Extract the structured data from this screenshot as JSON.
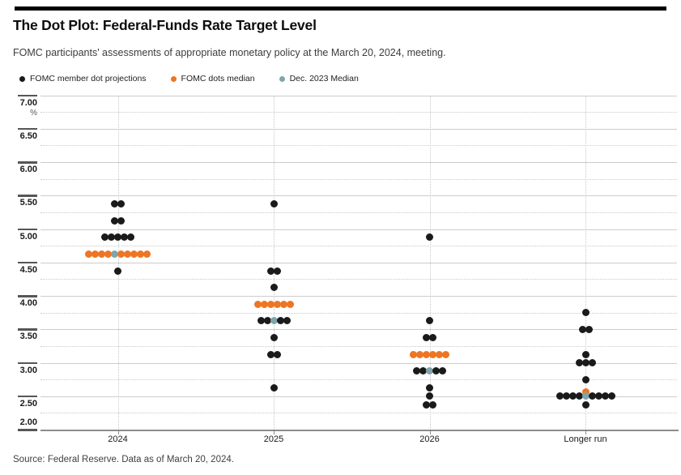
{
  "header": {
    "title": "The Dot Plot: Federal-Funds Rate Target Level",
    "subtitle": "FOMC participants' assessments of appropriate monetary policy at the March 20, 2024, meeting."
  },
  "legend": {
    "items": [
      {
        "label": "FOMC member dot projections",
        "color_key": "b"
      },
      {
        "label": "FOMC dots median",
        "color_key": "o"
      },
      {
        "label": "Dec. 2023 Median",
        "color_key": "t"
      }
    ]
  },
  "footer": {
    "source": "Source: Federal Reserve. Data as of March 20, 2024."
  },
  "chart_data": {
    "type": "scatter",
    "subtype": "fomc-dot-plot",
    "title": "The Dot Plot: Federal-Funds Rate Target Level",
    "ylabel": "%",
    "ylim": [
      2.0,
      7.0
    ],
    "y_major_tick_labels": [
      "7.00",
      "6.50",
      "6.00",
      "5.50",
      "5.00",
      "4.50",
      "4.00",
      "3.50",
      "3.00",
      "2.50",
      "2.00"
    ],
    "y_major_step": 0.5,
    "y_minor_step": 0.25,
    "grid": "horizontal-major-solid, horizontal-minor-dotted, vertical-column-dotted",
    "legend_position": "top-left",
    "categories": [
      "2024",
      "2025",
      "2026",
      "Longer run"
    ],
    "dot_colors": {
      "b": "#1a1a1a",
      "o": "#ee7523",
      "t": "#7fa5ab"
    },
    "dot_color_meaning": {
      "b": "FOMC member dot projection",
      "o": "FOMC dots median",
      "t": "Dec. 2023 Median"
    },
    "columns": [
      {
        "period": "2024",
        "median": 4.625,
        "dec_2023_median": 4.625,
        "rows": [
          {
            "value": 5.375,
            "pattern": "bb"
          },
          {
            "value": 5.125,
            "pattern": "bb"
          },
          {
            "value": 4.875,
            "pattern": "bbbbb"
          },
          {
            "value": 4.625,
            "pattern": "ooootooooo"
          },
          {
            "value": 4.375,
            "pattern": "b"
          }
        ]
      },
      {
        "period": "2025",
        "median": 3.875,
        "dec_2023_median": 3.625,
        "rows": [
          {
            "value": 5.375,
            "pattern": "b"
          },
          {
            "value": 4.375,
            "pattern": "bb"
          },
          {
            "value": 4.125,
            "pattern": "b"
          },
          {
            "value": 3.875,
            "pattern": "oooooo"
          },
          {
            "value": 3.625,
            "pattern": "bbtbb"
          },
          {
            "value": 3.375,
            "pattern": "b"
          },
          {
            "value": 3.125,
            "pattern": "bb"
          },
          {
            "value": 2.625,
            "pattern": "b"
          }
        ]
      },
      {
        "period": "2026",
        "median": 3.125,
        "dec_2023_median": 2.875,
        "rows": [
          {
            "value": 4.875,
            "pattern": "b"
          },
          {
            "value": 3.625,
            "pattern": "b"
          },
          {
            "value": 3.375,
            "pattern": "bb"
          },
          {
            "value": 3.125,
            "pattern": "oooooo"
          },
          {
            "value": 2.875,
            "pattern": "bbtbb"
          },
          {
            "value": 2.625,
            "pattern": "b"
          },
          {
            "value": 2.5,
            "pattern": "b"
          },
          {
            "value": 2.375,
            "pattern": "bb"
          }
        ]
      },
      {
        "period": "Longer run",
        "median": 2.5625,
        "dec_2023_median": 2.5,
        "rows": [
          {
            "value": 3.75,
            "pattern": "b"
          },
          {
            "value": 3.5,
            "pattern": "bb"
          },
          {
            "value": 3.125,
            "pattern": "b"
          },
          {
            "value": 3.0,
            "pattern": "bbb"
          },
          {
            "value": 2.75,
            "pattern": "b"
          },
          {
            "value": 2.5625,
            "pattern": "o"
          },
          {
            "value": 2.5,
            "pattern": "bbbbtbbbb"
          },
          {
            "value": 2.375,
            "pattern": "b"
          }
        ]
      }
    ]
  }
}
